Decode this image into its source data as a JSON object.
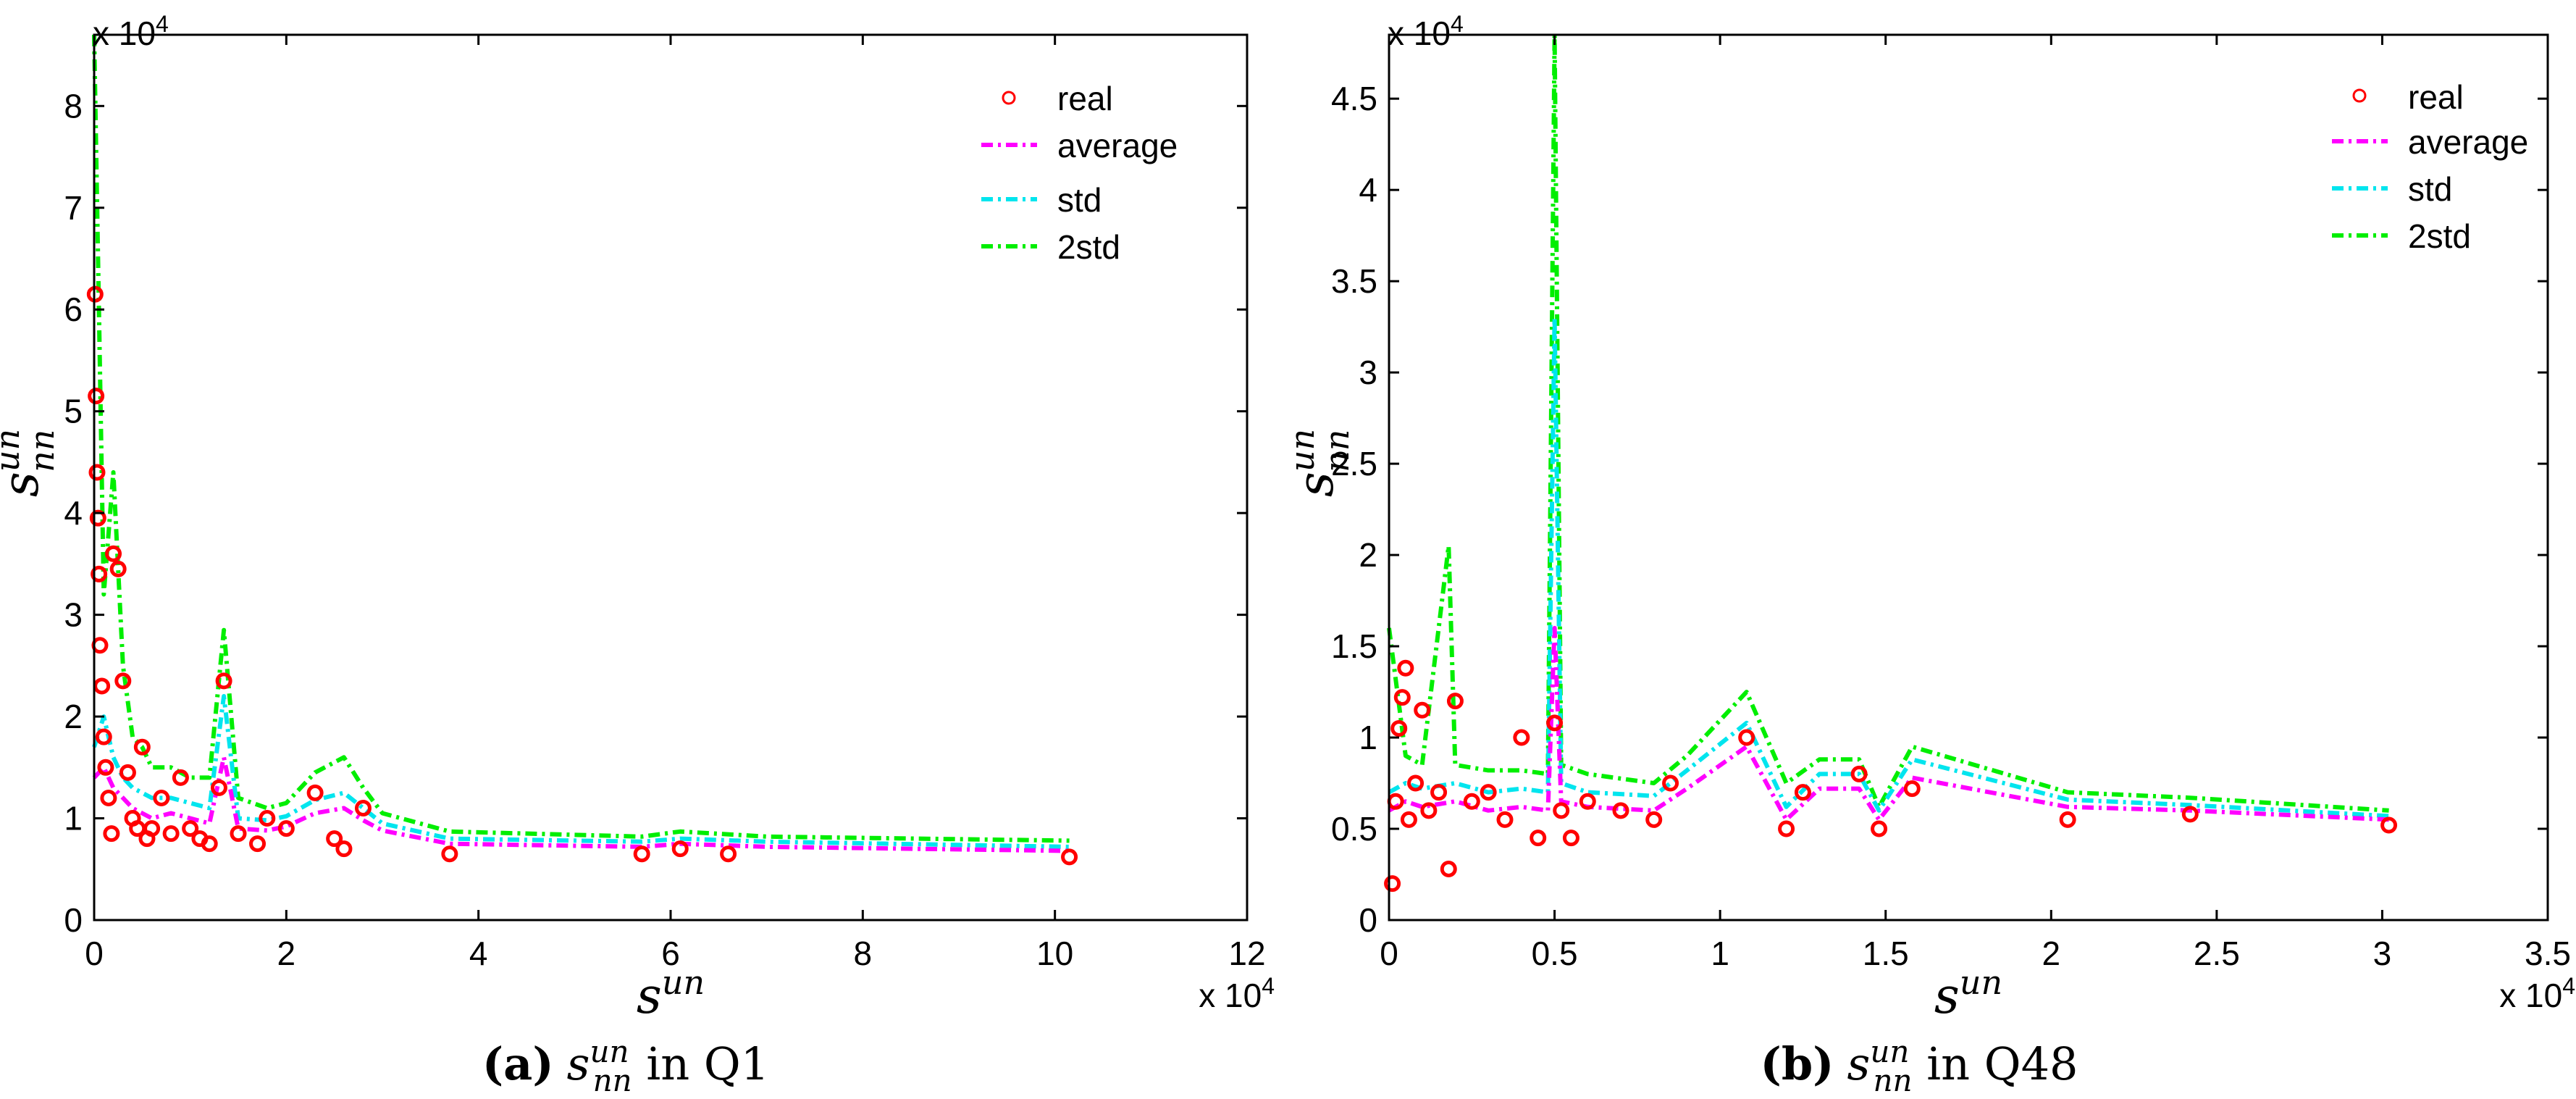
{
  "chart_data": [
    {
      "type": "line",
      "caption": {
        "tag": "(a)",
        "var": "s",
        "sup": "un",
        "sub": "nn",
        "rest": " in Q1"
      },
      "exponent_x": {
        "base": "x 10",
        "power": "4"
      },
      "exponent_y": {
        "base": "x 10",
        "power": "4"
      },
      "xlabel": {
        "base": "s",
        "sup": "un"
      },
      "ylabel": {
        "base": "s",
        "sup": "un",
        "sub": "nn"
      },
      "xlim": [
        0,
        12
      ],
      "ylim": [
        0,
        8.7
      ],
      "xticks": [
        0,
        2,
        4,
        6,
        8,
        10,
        12
      ],
      "xtick_labels": [
        "0",
        "2",
        "4",
        "6",
        "8",
        "10",
        "12"
      ],
      "yticks": [
        0,
        1,
        2,
        3,
        4,
        5,
        6,
        7,
        8
      ],
      "ytick_labels": [
        "0",
        "1",
        "2",
        "3",
        "4",
        "5",
        "6",
        "7",
        "8"
      ],
      "legend": [
        "real",
        "average",
        "std",
        "2std"
      ],
      "colors": {
        "real": "#ff0000",
        "average": "#ff00ff",
        "std": "#00e5ee",
        "2std": "#00ee00"
      },
      "real": {
        "x": [
          0.01,
          0.02,
          0.03,
          0.04,
          0.05,
          0.06,
          0.08,
          0.1,
          0.12,
          0.15,
          0.18,
          0.2,
          0.25,
          0.3,
          0.35,
          0.4,
          0.45,
          0.5,
          0.55,
          0.6,
          0.7,
          0.8,
          0.9,
          1.0,
          1.1,
          1.2,
          1.3,
          1.35,
          1.5,
          1.7,
          1.8,
          2.0,
          2.3,
          2.5,
          2.6,
          2.8,
          3.7,
          5.7,
          6.1,
          6.6,
          10.15
        ],
        "y": [
          6.15,
          5.15,
          4.4,
          3.95,
          3.4,
          2.7,
          2.3,
          1.8,
          1.5,
          1.2,
          0.85,
          3.6,
          3.45,
          2.35,
          1.45,
          1.0,
          0.9,
          1.7,
          0.8,
          0.9,
          1.2,
          0.85,
          1.4,
          0.9,
          0.8,
          0.75,
          1.3,
          2.35,
          0.85,
          0.75,
          1.0,
          0.9,
          1.25,
          0.8,
          0.7,
          1.1,
          0.65,
          0.65,
          0.7,
          0.65,
          0.62
        ]
      },
      "average": {
        "x": [
          0,
          0.1,
          0.2,
          0.3,
          0.4,
          0.5,
          0.6,
          0.8,
          1.0,
          1.2,
          1.35,
          1.5,
          1.8,
          2.0,
          2.3,
          2.6,
          2.8,
          3.0,
          3.7,
          5.7,
          6.1,
          7.0,
          10.15
        ],
        "y": [
          1.4,
          1.5,
          1.3,
          1.2,
          1.1,
          1.05,
          1.0,
          1.05,
          1.0,
          0.95,
          1.6,
          0.9,
          0.88,
          0.92,
          1.05,
          1.1,
          0.98,
          0.88,
          0.75,
          0.72,
          0.75,
          0.72,
          0.68
        ]
      },
      "std": {
        "x": [
          0,
          0.1,
          0.2,
          0.3,
          0.4,
          0.5,
          0.6,
          0.8,
          1.0,
          1.2,
          1.35,
          1.5,
          1.8,
          2.0,
          2.3,
          2.6,
          2.8,
          3.0,
          3.7,
          5.7,
          6.1,
          7.0,
          10.15
        ],
        "y": [
          1.7,
          2.0,
          1.6,
          1.4,
          1.3,
          1.25,
          1.2,
          1.2,
          1.15,
          1.1,
          2.2,
          1.0,
          0.98,
          1.02,
          1.18,
          1.25,
          1.1,
          0.95,
          0.8,
          0.77,
          0.8,
          0.77,
          0.72
        ]
      },
      "std2": {
        "x": [
          0,
          0.05,
          0.1,
          0.2,
          0.3,
          0.4,
          0.5,
          0.6,
          0.8,
          1.0,
          1.2,
          1.35,
          1.5,
          1.8,
          2.0,
          2.3,
          2.6,
          2.8,
          3.0,
          3.7,
          5.7,
          6.1,
          7.0,
          10.15
        ],
        "y": [
          8.7,
          6.0,
          3.2,
          4.4,
          2.5,
          1.8,
          1.7,
          1.5,
          1.5,
          1.4,
          1.4,
          2.85,
          1.2,
          1.1,
          1.15,
          1.45,
          1.6,
          1.3,
          1.05,
          0.87,
          0.82,
          0.87,
          0.82,
          0.78
        ]
      }
    },
    {
      "type": "line",
      "caption": {
        "tag": "(b)",
        "var": "s",
        "sup": "un",
        "sub": "nn",
        "rest": " in Q48"
      },
      "exponent_x": {
        "base": "x 10",
        "power": "4"
      },
      "exponent_y": {
        "base": "x 10",
        "power": "4"
      },
      "xlabel": {
        "base": "s",
        "sup": "un"
      },
      "ylabel": {
        "base": "s",
        "sup": "un",
        "sub": "nn"
      },
      "xlim": [
        0,
        3.5
      ],
      "ylim": [
        0,
        4.85
      ],
      "xticks": [
        0,
        0.5,
        1,
        1.5,
        2,
        2.5,
        3,
        3.5
      ],
      "xtick_labels": [
        "0",
        "0.5",
        "1",
        "1.5",
        "2",
        "2.5",
        "3",
        "3.5"
      ],
      "yticks": [
        0,
        0.5,
        1,
        1.5,
        2,
        2.5,
        3,
        3.5,
        4,
        4.5
      ],
      "ytick_labels": [
        "0",
        "0.5",
        "1",
        "1.5",
        "2",
        "2.5",
        "3",
        "3.5",
        "4",
        "4.5"
      ],
      "legend": [
        "real",
        "average",
        "std",
        "2std"
      ],
      "colors": {
        "real": "#ff0000",
        "average": "#ff00ff",
        "std": "#00e5ee",
        "2std": "#00ee00"
      },
      "real": {
        "x": [
          0.01,
          0.02,
          0.03,
          0.04,
          0.05,
          0.06,
          0.08,
          0.1,
          0.12,
          0.15,
          0.18,
          0.2,
          0.25,
          0.3,
          0.35,
          0.4,
          0.45,
          0.5,
          0.52,
          0.55,
          0.6,
          0.7,
          0.8,
          0.85,
          1.08,
          1.2,
          1.25,
          1.42,
          1.48,
          1.58,
          2.05,
          2.42,
          3.02
        ],
        "y": [
          0.2,
          0.65,
          1.05,
          1.22,
          1.38,
          0.55,
          0.75,
          1.15,
          0.6,
          0.7,
          0.28,
          1.2,
          0.65,
          0.7,
          0.55,
          1.0,
          0.45,
          1.08,
          0.6,
          0.45,
          0.65,
          0.6,
          0.55,
          0.75,
          1.0,
          0.5,
          0.7,
          0.8,
          0.5,
          0.72,
          0.55,
          0.58,
          0.52
        ]
      },
      "average": {
        "x": [
          0,
          0.05,
          0.1,
          0.2,
          0.3,
          0.4,
          0.48,
          0.5,
          0.52,
          0.6,
          0.8,
          0.9,
          1.08,
          1.2,
          1.3,
          1.42,
          1.48,
          1.58,
          2.05,
          2.42,
          3.02
        ],
        "y": [
          0.6,
          0.65,
          0.62,
          0.65,
          0.6,
          0.62,
          0.6,
          1.6,
          0.65,
          0.62,
          0.6,
          0.72,
          0.95,
          0.55,
          0.72,
          0.72,
          0.55,
          0.78,
          0.62,
          0.6,
          0.55
        ]
      },
      "std": {
        "x": [
          0,
          0.05,
          0.1,
          0.2,
          0.3,
          0.4,
          0.48,
          0.5,
          0.52,
          0.6,
          0.8,
          0.9,
          1.08,
          1.2,
          1.3,
          1.42,
          1.48,
          1.58,
          2.05,
          2.42,
          3.02
        ],
        "y": [
          0.7,
          0.75,
          0.72,
          0.75,
          0.7,
          0.72,
          0.7,
          3.3,
          0.75,
          0.7,
          0.68,
          0.82,
          1.08,
          0.62,
          0.8,
          0.8,
          0.6,
          0.88,
          0.66,
          0.63,
          0.57
        ]
      },
      "std2": {
        "x": [
          0,
          0.05,
          0.1,
          0.18,
          0.2,
          0.3,
          0.4,
          0.48,
          0.5,
          0.52,
          0.6,
          0.8,
          0.9,
          1.08,
          1.2,
          1.3,
          1.42,
          1.48,
          1.58,
          2.05,
          2.42,
          3.02
        ],
        "y": [
          1.6,
          0.9,
          0.85,
          2.05,
          0.85,
          0.82,
          0.82,
          0.8,
          4.85,
          0.85,
          0.8,
          0.75,
          0.9,
          1.25,
          0.75,
          0.88,
          0.88,
          0.62,
          0.95,
          0.7,
          0.67,
          0.6
        ]
      }
    }
  ]
}
